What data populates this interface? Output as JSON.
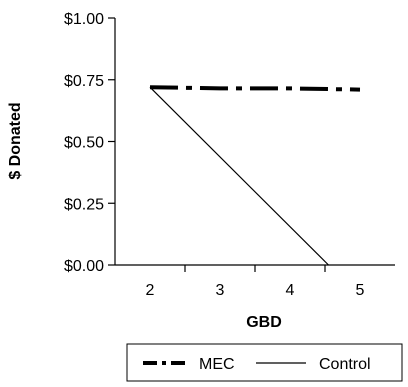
{
  "chart_data": {
    "type": "line",
    "xlabel": "GBD",
    "ylabel": "$ Donated",
    "x_ticks": [
      "2",
      "3",
      "4",
      "5"
    ],
    "y_ticks": [
      "$0.00",
      "$0.25",
      "$0.50",
      "$0.75",
      "$1.00"
    ],
    "xlim": [
      1.5,
      5.5
    ],
    "ylim": [
      0,
      1
    ],
    "grid": false,
    "legend_position": "bottom",
    "series": [
      {
        "name": "MEC",
        "style": "dash-dot-thick",
        "color": "#000000",
        "x": [
          2,
          3,
          4,
          5
        ],
        "y": [
          0.72,
          0.715,
          0.715,
          0.71
        ]
      },
      {
        "name": "Control",
        "style": "solid-thin",
        "color": "#000000",
        "x": [
          2,
          4.55
        ],
        "y": [
          0.72,
          0.0
        ]
      }
    ]
  }
}
